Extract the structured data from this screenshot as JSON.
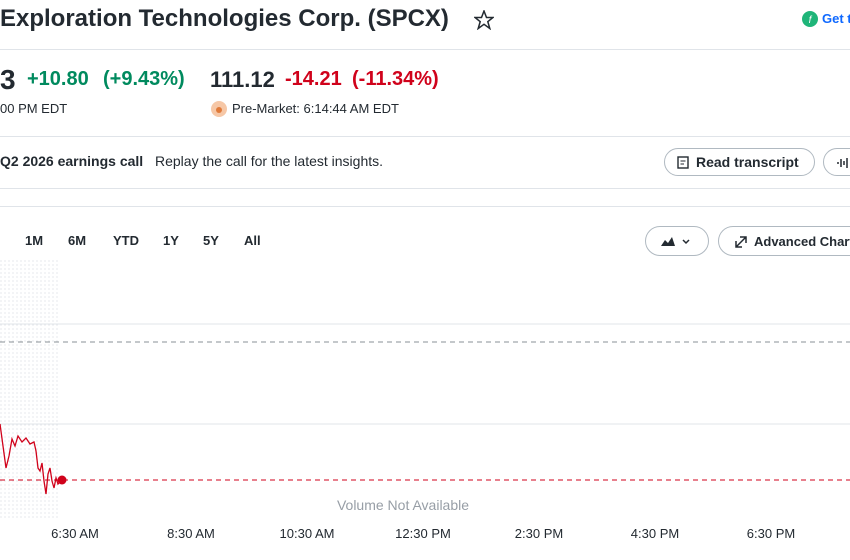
{
  "header": {
    "title": "Exploration Technologies Corp. (SPCX)",
    "get_app": "Get t"
  },
  "quote": {
    "price": "3",
    "change": "+10.80",
    "change_pct": "(+9.43%)",
    "close_time": "00 PM EDT",
    "pre_price": "111.12",
    "pre_change": "-14.21",
    "pre_change_pct": "(-11.34%)",
    "pre_time": "Pre-Market: 6:14:44 AM EDT"
  },
  "banner": {
    "title": "Q2 2026 earnings call",
    "text": "Replay the call for the latest insights.",
    "button": "Read transcript"
  },
  "ranges": [
    "1M",
    "6M",
    "YTD",
    "1Y",
    "5Y",
    "All"
  ],
  "advanced_chart": "Advanced Chart",
  "chart": {
    "volume_note": "Volume Not Available",
    "x_labels": [
      "6:30 AM",
      "8:30 AM",
      "10:30 AM",
      "12:30 PM",
      "2:30 PM",
      "4:30 PM",
      "6:30 PM"
    ]
  }
}
